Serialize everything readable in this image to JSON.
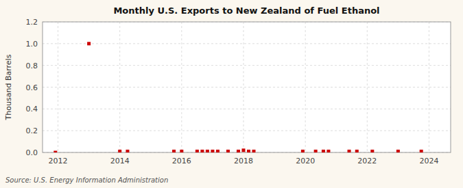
{
  "chart_data": {
    "type": "scatter",
    "title": "Monthly U.S. Exports to New Zealand of Fuel Ethanol",
    "ylabel": "Thousand Barrels",
    "annotations": [
      "Source: U.S. Energy Information Administration"
    ],
    "color": "#cc0000",
    "marker": "square",
    "grid": true,
    "xlim": [
      2011.5,
      2024.7
    ],
    "xticks": [
      2012,
      2014,
      2016,
      2018,
      2020,
      2022,
      2024
    ],
    "ylim": [
      0.0,
      1.2
    ],
    "yticks": [
      {
        "value": 0.0,
        "label": "0.0"
      },
      0.2,
      0.4,
      0.6,
      0.8,
      {
        "value": 1.0,
        "label": "1.0"
      },
      1.2
    ],
    "x": [
      2011.917,
      2013.0,
      2014.0,
      2014.25,
      2015.75,
      2016.0,
      2016.5,
      2016.667,
      2016.833,
      2017.0,
      2017.167,
      2017.5,
      2017.833,
      2018.0,
      2018.167,
      2018.333,
      2019.917,
      2020.333,
      2020.583,
      2020.75,
      2021.417,
      2021.667,
      2022.167,
      2023.0,
      2023.75
    ],
    "values": [
      0.0,
      1.0,
      0.01,
      0.01,
      0.01,
      0.01,
      0.01,
      0.01,
      0.01,
      0.01,
      0.01,
      0.01,
      0.01,
      0.02,
      0.01,
      0.01,
      0.01,
      0.01,
      0.01,
      0.01,
      0.01,
      0.01,
      0.01,
      0.01,
      0.01
    ]
  }
}
